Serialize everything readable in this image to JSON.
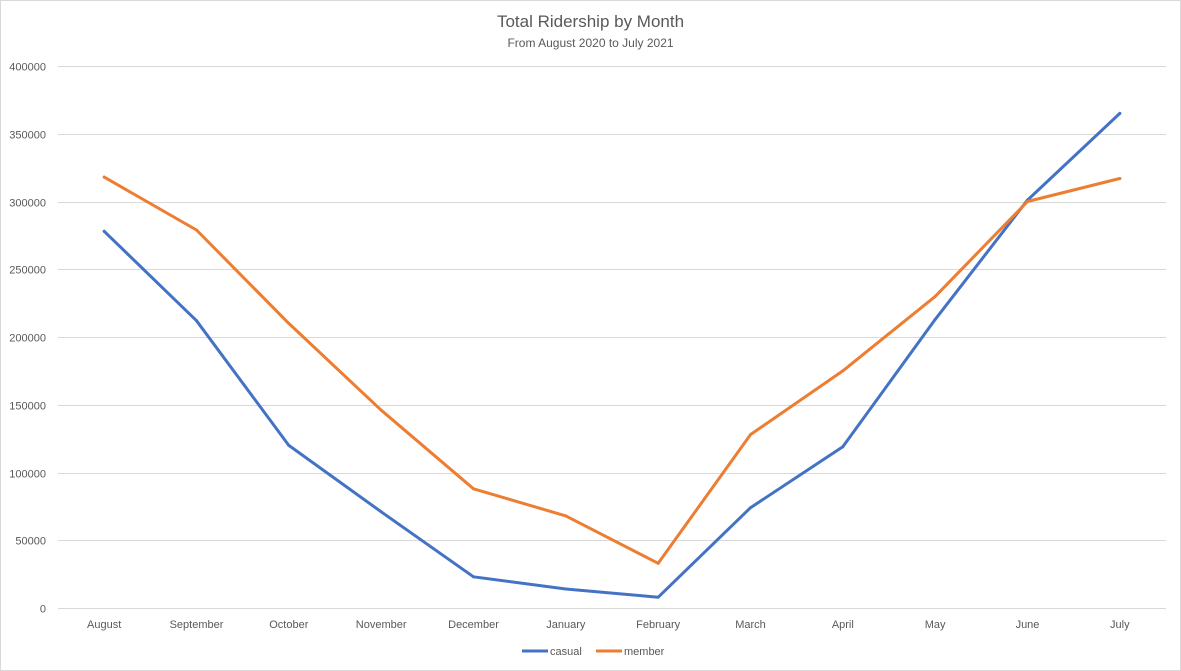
{
  "chart_data": {
    "type": "line",
    "title": "Total Ridership by Month",
    "subtitle": "From August 2020 to July 2021",
    "xlabel": "",
    "ylabel": "",
    "categories": [
      "August",
      "September",
      "October",
      "November",
      "December",
      "January",
      "February",
      "March",
      "April",
      "May",
      "June",
      "July"
    ],
    "ylim": [
      0,
      400000
    ],
    "yticks": [
      0,
      50000,
      100000,
      150000,
      200000,
      250000,
      300000,
      350000,
      400000
    ],
    "grid": true,
    "legend_position": "bottom",
    "series": [
      {
        "name": "casual",
        "color": "#4472c4",
        "values": [
          278000,
          212000,
          120000,
          71000,
          23000,
          14000,
          8000,
          74000,
          119000,
          213000,
          301000,
          365000
        ]
      },
      {
        "name": "member",
        "color": "#ed7d31",
        "values": [
          318000,
          279000,
          210000,
          146000,
          88000,
          68000,
          33000,
          128000,
          175000,
          230000,
          300000,
          317000
        ]
      }
    ]
  }
}
